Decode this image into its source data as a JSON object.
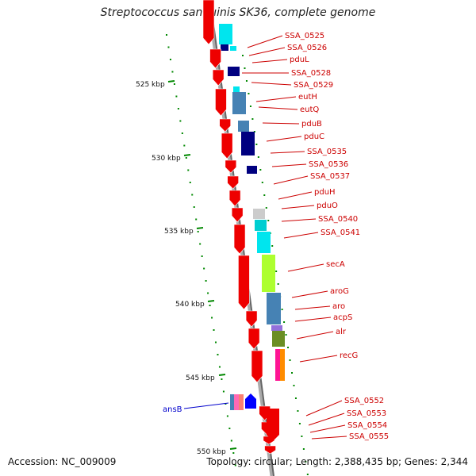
{
  "title": "Streptococcus sanguinis SK36, complete genome",
  "footer": {
    "accession": "Accession: NC_009009",
    "stats": "Topology: circular; Length: 2,388,435 bp; Genes: 2,344"
  },
  "colors": {
    "cds_forward": "#ee0000",
    "label_red": "#cc0000",
    "label_blue": "#0000cc",
    "tick_green": "#008800",
    "backbone": "#888888"
  },
  "kbp_ticks": [
    {
      "label": "525 kbp"
    },
    {
      "label": "530 kbp"
    },
    {
      "label": "535 kbp"
    },
    {
      "label": "540 kbp"
    },
    {
      "label": "545 kbp"
    },
    {
      "label": "550 kbp"
    }
  ],
  "gene_labels_right": [
    "SSA_0525",
    "SSA_0526",
    "pduL",
    "SSA_0528",
    "SSA_0529",
    "eutH",
    "eutQ",
    "pduB",
    "pduC",
    "SSA_0535",
    "SSA_0536",
    "SSA_0537",
    "pduH",
    "pduO",
    "SSA_0540",
    "SSA_0541",
    "secA",
    "aroG",
    "aro",
    "acpS",
    "alr",
    "recG",
    "SSA_0552",
    "SSA_0553",
    "SSA_0554",
    "SSA_0555"
  ],
  "gene_labels_left": [
    "ansB"
  ]
}
